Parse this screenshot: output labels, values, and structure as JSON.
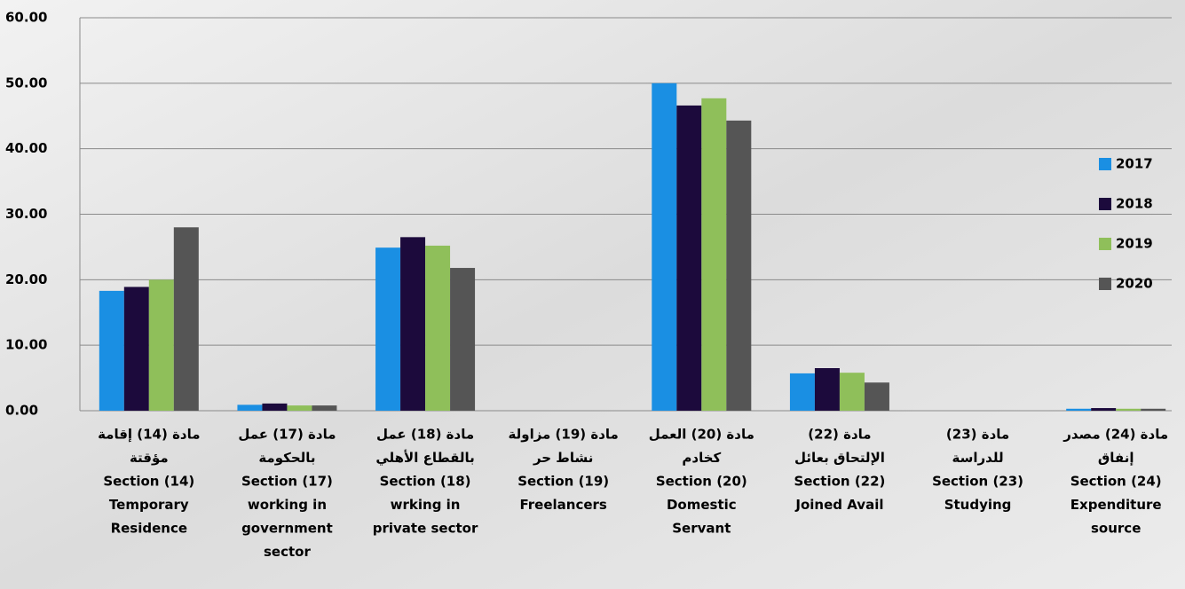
{
  "chart_data": {
    "type": "bar",
    "categories": [
      [
        "مادة (14) إقامة",
        "مؤقتة",
        "Section (14)",
        "Temporary",
        "Residence"
      ],
      [
        "مادة (17) عمل",
        "بالحكومة",
        "Section (17)",
        "working in",
        "government",
        "sector"
      ],
      [
        "مادة (18) عمل",
        "بالقطاع الأهلي",
        "Section (18)",
        "wrking in",
        "private sector"
      ],
      [
        "مادة (19) مزاولة",
        "نشاط حر",
        "Section (19)",
        "Freelancers"
      ],
      [
        "مادة (20) العمل",
        "كخادم",
        "Section (20)",
        "Domestic",
        "Servant"
      ],
      [
        "مادة (22)",
        "الإلتحاق بعائل",
        "Section (22)",
        "Joined Avail"
      ],
      [
        "مادة (23)",
        "للدراسة",
        "Section (23)",
        "Studying"
      ],
      [
        "مادة (24) مصدر",
        "إنفاق",
        "Section (24)",
        "Expenditure",
        "source"
      ]
    ],
    "series": [
      {
        "name": "2017",
        "color": "#1a8fe3",
        "values": [
          18.3,
          0.9,
          24.9,
          0,
          50.0,
          5.7,
          0,
          0.3
        ]
      },
      {
        "name": "2018",
        "color": "#1c0a3c",
        "values": [
          18.9,
          1.1,
          26.5,
          0,
          46.6,
          6.5,
          0,
          0.4
        ]
      },
      {
        "name": "2019",
        "color": "#8fbf5a",
        "values": [
          20.0,
          0.8,
          25.2,
          0,
          47.7,
          5.8,
          0,
          0.3
        ]
      },
      {
        "name": "2020",
        "color": "#555555",
        "values": [
          28.0,
          0.8,
          21.8,
          0,
          44.3,
          4.3,
          0,
          0.3
        ]
      }
    ],
    "ylim": [
      0,
      60
    ],
    "yticks": [
      {
        "value": 0,
        "label": "0.00"
      },
      {
        "value": 10,
        "label": "10.00"
      },
      {
        "value": 20,
        "label": "20.00"
      },
      {
        "value": 30,
        "label": "30.00"
      },
      {
        "value": 40,
        "label": "40.00"
      },
      {
        "value": 50,
        "label": "50.00"
      },
      {
        "value": 60,
        "label": "60.00"
      }
    ],
    "grid": true,
    "legend": "right"
  }
}
